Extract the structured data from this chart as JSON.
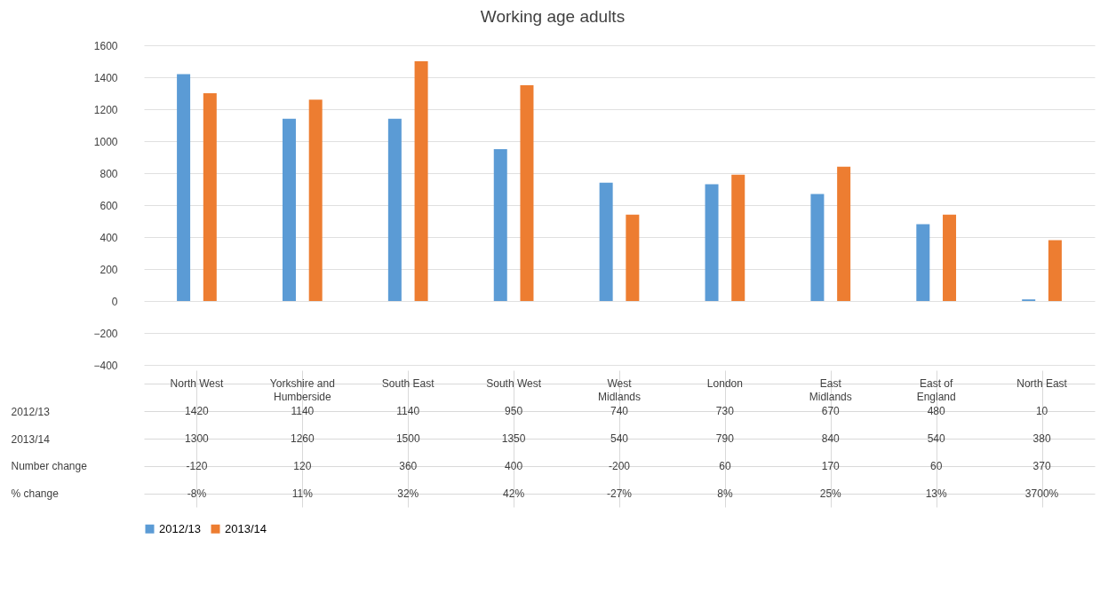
{
  "chart_data": {
    "type": "bar",
    "title": "Working age adults",
    "categories": [
      "North West",
      "Yorkshire and Humberside",
      "South East",
      "South West",
      "West Midlands",
      "London",
      "East Midlands",
      "East of England",
      "North East"
    ],
    "series": [
      {
        "name": "2012/13",
        "color": "#5b9bd5",
        "values": [
          1420,
          1140,
          1140,
          950,
          740,
          730,
          670,
          480,
          10
        ]
      },
      {
        "name": "2013/14",
        "color": "#ed7d31",
        "values": [
          1300,
          1260,
          1500,
          1350,
          540,
          790,
          840,
          540,
          380
        ]
      }
    ],
    "ylim": [
      -400,
      1600
    ],
    "yticks": [
      -400,
      -200,
      0,
      200,
      400,
      600,
      800,
      1000,
      1200,
      1400,
      1600
    ],
    "grid": "y",
    "legend": "bottom",
    "data_labels": true,
    "annotations": [
      "Number change",
      "-120",
      "120",
      "360",
      "400",
      "-200",
      "60",
      "170",
      "60",
      "370",
      "% change",
      "-8%",
      "11%",
      "32%",
      "42%",
      "-27%",
      "8%",
      "25%",
      "13%",
      "3700%"
    ]
  }
}
